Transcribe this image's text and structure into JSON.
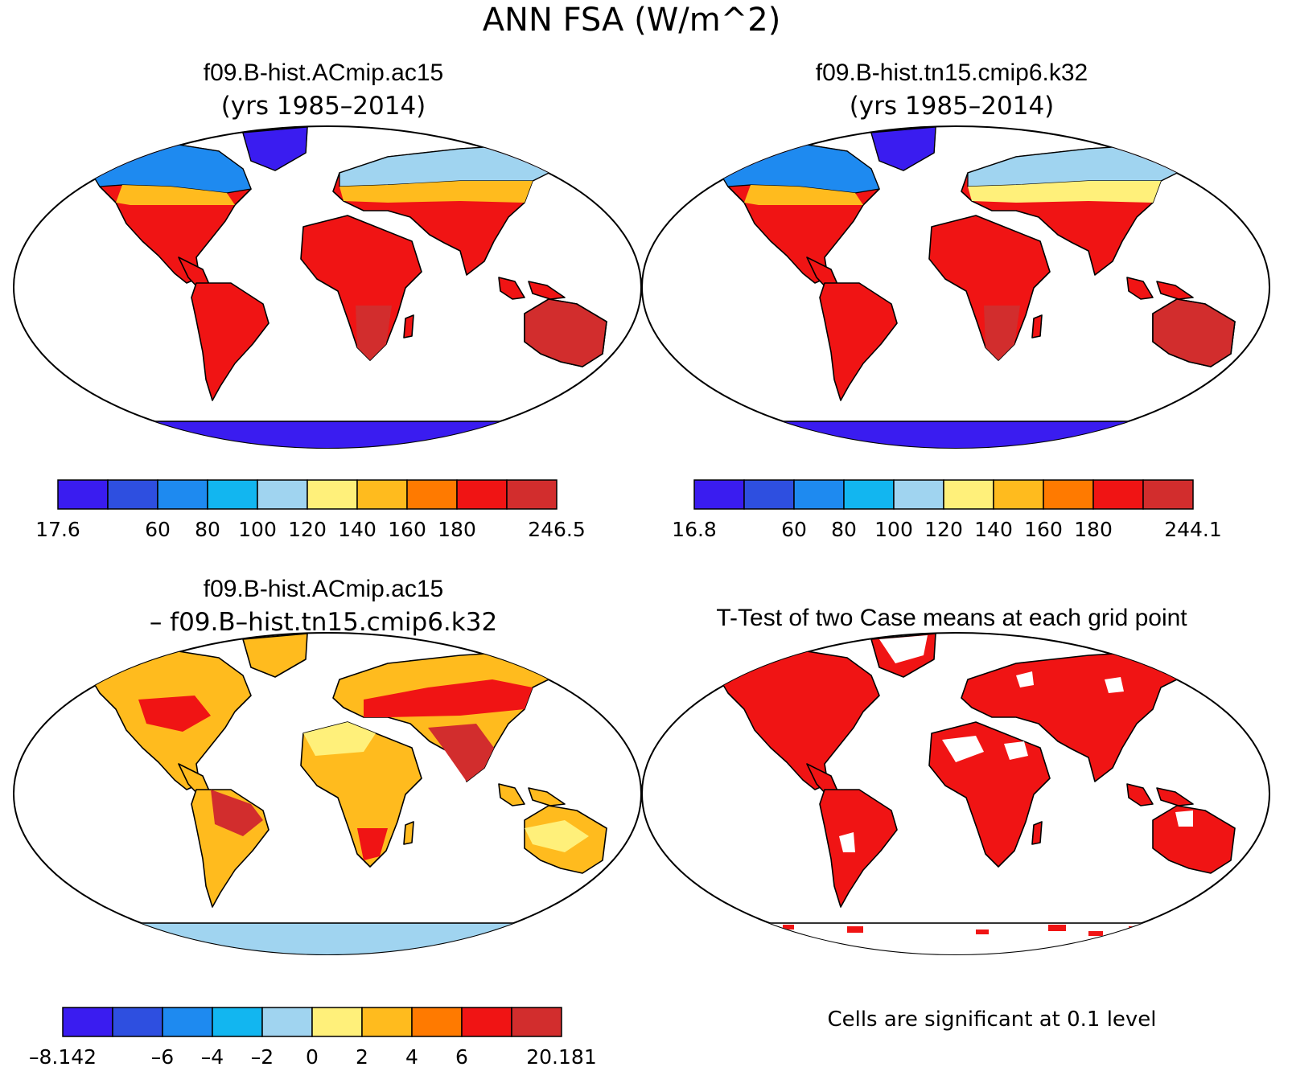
{
  "title": "ANN FSA (W/m^2)",
  "chart_data": [
    {
      "type": "heatmap",
      "title": "f09.B-hist.ACmip.ac15",
      "subtitle": "(yrs 1985–2014)",
      "colorbar": {
        "colors": [
          "#3a1cf0",
          "#2e4fe0",
          "#1e8af0",
          "#12b6f0",
          "#a0d4f0",
          "#fff07a",
          "#ffbb1e",
          "#ff7a00",
          "#f01414",
          "#d22d2d"
        ],
        "tick_labels": [
          "17.6",
          "",
          "60",
          "80",
          "100",
          "120",
          "140",
          "160",
          "180",
          "",
          "246.5"
        ]
      }
    },
    {
      "type": "heatmap",
      "title": "f09.B-hist.tn15.cmip6.k32",
      "subtitle": "(yrs 1985–2014)",
      "colorbar": {
        "colors": [
          "#3a1cf0",
          "#2e4fe0",
          "#1e8af0",
          "#12b6f0",
          "#a0d4f0",
          "#fff07a",
          "#ffbb1e",
          "#ff7a00",
          "#f01414",
          "#d22d2d"
        ],
        "tick_labels": [
          "16.8",
          "",
          "60",
          "80",
          "100",
          "120",
          "140",
          "160",
          "180",
          "",
          "244.1"
        ]
      }
    },
    {
      "type": "heatmap",
      "title": "f09.B-hist.ACmip.ac15",
      "subtitle": "– f09.B–hist.tn15.cmip6.k32",
      "colorbar": {
        "colors": [
          "#3a1cf0",
          "#2e4fe0",
          "#1e8af0",
          "#12b6f0",
          "#a0d4f0",
          "#fff07a",
          "#ffbb1e",
          "#ff7a00",
          "#f01414",
          "#d22d2d"
        ],
        "tick_labels": [
          "–8.142",
          "",
          "–6",
          "–4",
          "–2",
          "0",
          "2",
          "4",
          "6",
          "",
          "20.181"
        ]
      }
    },
    {
      "type": "heatmap",
      "title": "T-Test of two Case means at each grid point",
      "note": "Cells are significant at 0.1 level",
      "colors": {
        "significant": "#f01414"
      }
    }
  ]
}
